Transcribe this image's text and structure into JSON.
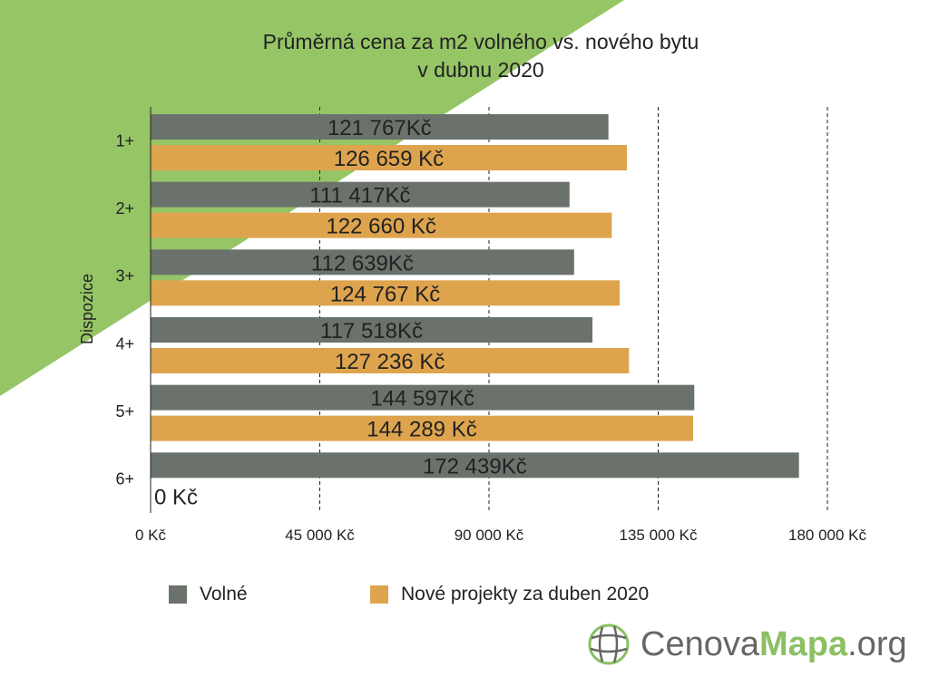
{
  "title_line1": "Průměrná cena za m2 volného vs. nového bytu",
  "title_line2": "v dubnu 2020",
  "colors": {
    "background_triangle": "#96c566",
    "free": "#6b726c",
    "new": "#dea44d"
  },
  "chart_data": {
    "type": "bar",
    "orientation": "horizontal",
    "ylabel": "Dispozice",
    "categories": [
      "1+",
      "2+",
      "3+",
      "4+",
      "5+",
      "6+"
    ],
    "x_ticks": [
      "0 Kč",
      "45 000 Kč",
      "90 000 Kč",
      "135 000 Kč",
      "180 000 Kč"
    ],
    "xlim": [
      0,
      180000
    ],
    "grid": "vertical dashed",
    "legend_position": "bottom",
    "series": [
      {
        "name": "Volné",
        "values": [
          121767,
          111417,
          112639,
          117518,
          144597,
          172439
        ],
        "labels": [
          "121 767Kč",
          "111 417Kč",
          "112 639Kč",
          "117 518Kč",
          "144 597Kč",
          "172 439Kč"
        ]
      },
      {
        "name": "Nové projekty za duben 2020",
        "values": [
          126659,
          122660,
          124767,
          127236,
          144289,
          0
        ],
        "labels": [
          "126 659 Kč",
          "122 660 Kč",
          "124 767 Kč",
          "127 236 Kč",
          "144 289 Kč",
          "0 Kč"
        ]
      }
    ]
  },
  "logo": {
    "icon": "globe-icon",
    "text_part1": "Cenova",
    "text_part2": "Mapa",
    "text_part3": ".org"
  }
}
